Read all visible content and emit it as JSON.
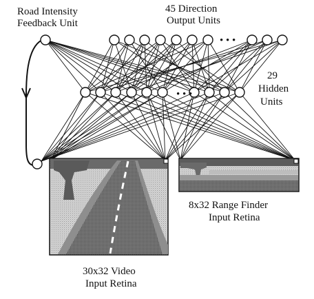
{
  "labels": {
    "feedback_line1": "Road Intensity",
    "feedback_line2": "Feedback Unit",
    "output_line1": "45 Direction",
    "output_line2": "Output Units",
    "hidden_line1": "29",
    "hidden_line2": "Hidden",
    "hidden_line3": "Units",
    "video_line1": "30x32 Video",
    "video_line2": "Input Retina",
    "range_line1": "8x32 Range Finder",
    "range_line2": "Input Retina",
    "ellipsis": "• • •"
  },
  "network": {
    "output_units_drawn": 10,
    "hidden_units_drawn": 10,
    "output_units_total": 45,
    "hidden_units_total": 29
  },
  "colors": {
    "ink": "#111111",
    "sky": "#cfcfcf",
    "road": "#3d3d3d",
    "shoulder": "#8a8a8a",
    "tree": "#555555",
    "stripe": "#ffffff"
  }
}
